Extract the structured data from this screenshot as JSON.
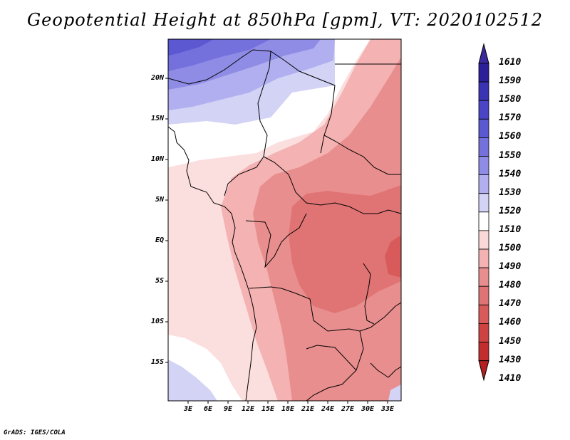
{
  "title": "Geopotential Height at 850hPa [gpm], VT: 2020102512",
  "footer": "GrADS: IGES/COLA",
  "lat_labels": [
    "20N",
    "15N",
    "10N",
    "5N",
    "EQ",
    "5S",
    "10S",
    "15S"
  ],
  "lon_labels": [
    "3E",
    "6E",
    "9E",
    "12E",
    "15E",
    "18E",
    "21E",
    "24E",
    "27E",
    "30E",
    "33E"
  ],
  "colorbar": {
    "levels": [
      "1610",
      "1590",
      "1580",
      "1570",
      "1560",
      "1550",
      "1540",
      "1530",
      "1520",
      "1510",
      "1500",
      "1490",
      "1480",
      "1470",
      "1460",
      "1450",
      "1430",
      "1410"
    ],
    "colors": [
      "#3a2a9e",
      "#2c1f9a",
      "#3a33b4",
      "#4b44c6",
      "#5c58d2",
      "#7470dc",
      "#8f8ce6",
      "#b1afef",
      "#d3d3f6",
      "#ffffff",
      "#fad8d8",
      "#f4b2b2",
      "#e98e8e",
      "#e07474",
      "#d85a5a",
      "#cf4242",
      "#c22e2e",
      "#b51f1f"
    ]
  }
}
